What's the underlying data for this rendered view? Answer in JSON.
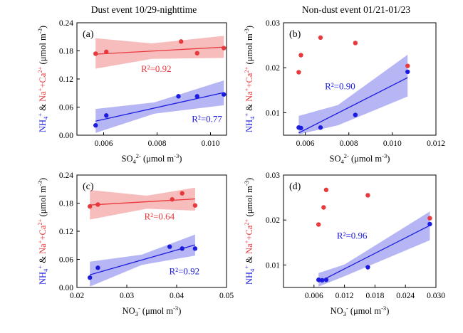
{
  "figure": {
    "column_titles": [
      "Dust event 10/29-nighttime",
      "Non-dust event 01/21-01/23"
    ]
  },
  "colors": {
    "red": "#e8393d",
    "red_band": "#f4a6a6",
    "blue": "#1c1ce0",
    "blue_band": "#9d9df0",
    "axis": "#000000"
  },
  "chart_data": [
    {
      "id": "a",
      "type": "scatter",
      "panel_label": "(a)",
      "xlabel": {
        "base": "SO",
        "sub": "4",
        "sup": "2-",
        "unit": " (μmol m",
        "unit_sup": "-3",
        "close": ")"
      },
      "ylabel": {
        "nh4": "NH",
        "nh4_sub": "4",
        "nh4_sup": "+",
        "amp": " & ",
        "na": "Na",
        "na_sup": "+",
        "plus": "+Ca",
        "ca_sup": "2+",
        "unit": " (μmol m",
        "unit_sup": "-3",
        "close": ")"
      },
      "xlim": [
        0.005,
        0.0106
      ],
      "ylim": [
        0,
        0.24
      ],
      "xticks": [
        0.006,
        0.008,
        0.01
      ],
      "xtick_labels": [
        "0.006",
        "0.008",
        "0.010"
      ],
      "yticks": [
        0,
        0.06,
        0.12,
        0.18,
        0.24
      ],
      "ytick_labels": [
        "0.00",
        "0.06",
        "0.12",
        "0.18",
        "0.24"
      ],
      "series": [
        {
          "name": "Na+ + Ca2+",
          "color": "red",
          "x": [
            0.0057,
            0.0061,
            0.0089,
            0.0095,
            0.0105
          ],
          "y": [
            0.174,
            0.178,
            0.2,
            0.175,
            0.186
          ],
          "fit": {
            "x": [
              0.0057,
              0.0105
            ],
            "y": [
              0.173,
              0.188
            ]
          },
          "band_upper": {
            "x": [
              0.0057,
              0.0078,
              0.0105
            ],
            "y": [
              0.207,
              0.196,
              0.212
            ]
          },
          "band_lower": {
            "x": [
              0.0057,
              0.0078,
              0.0105
            ],
            "y": [
              0.142,
              0.163,
              0.165
            ]
          },
          "r2": "R²=0.92",
          "r2_pos": [
            0.0074,
            0.135
          ]
        },
        {
          "name": "NH4+",
          "color": "blue",
          "x": [
            0.0057,
            0.0061,
            0.0088,
            0.0095,
            0.0105
          ],
          "y": [
            0.021,
            0.042,
            0.083,
            0.083,
            0.087
          ],
          "fit": {
            "x": [
              0.0057,
              0.0105
            ],
            "y": [
              0.03,
              0.091
            ]
          },
          "band_upper": {
            "x": [
              0.0057,
              0.0079,
              0.0105
            ],
            "y": [
              0.056,
              0.07,
              0.117
            ]
          },
          "band_lower": {
            "x": [
              0.0057,
              0.0079,
              0.0105
            ],
            "y": [
              0.005,
              0.046,
              0.064
            ]
          },
          "r2": "R²=0.77",
          "r2_pos": [
            0.0093,
            0.028
          ]
        }
      ]
    },
    {
      "id": "b",
      "type": "scatter",
      "panel_label": "(b)",
      "xlabel": {
        "base": "SO",
        "sub": "4",
        "sup": "2-",
        "unit": " (μmol m",
        "unit_sup": "-3",
        "close": ")"
      },
      "ylabel": {
        "nh4": "NH",
        "nh4_sub": "4",
        "nh4_sup": "+",
        "amp": " & ",
        "na": "Na",
        "na_sup": "+",
        "plus": "+Ca",
        "ca_sup": "2+",
        "unit": " (μmol m",
        "unit_sup": "-3",
        "close": ")"
      },
      "xlim": [
        0.005,
        0.012
      ],
      "ylim": [
        0.005,
        0.03
      ],
      "xticks": [
        0.006,
        0.008,
        0.01,
        0.012
      ],
      "xtick_labels": [
        "0.006",
        "0.008",
        "0.010",
        "0.012"
      ],
      "yticks": [
        0.01,
        0.02,
        0.03
      ],
      "ytick_labels": [
        "0.01",
        "0.02",
        "0.03"
      ],
      "series": [
        {
          "name": "Na+ + Ca2+",
          "color": "red",
          "x": [
            0.0057,
            0.0058,
            0.0067,
            0.0083,
            0.0107
          ],
          "y": [
            0.019,
            0.0228,
            0.0267,
            0.0255,
            0.0204
          ],
          "fit": null,
          "band_upper": null,
          "band_lower": null,
          "r2": null,
          "r2_pos": null
        },
        {
          "name": "NH4+",
          "color": "blue",
          "x": [
            0.0057,
            0.0058,
            0.0067,
            0.0083,
            0.0107
          ],
          "y": [
            0.0067,
            0.0066,
            0.0067,
            0.0095,
            0.0191
          ],
          "fit": {
            "x": [
              0.0057,
              0.0107
            ],
            "y": [
              0.0055,
              0.0178
            ]
          },
          "band_upper": {
            "x": [
              0.0057,
              0.0075,
              0.0107
            ],
            "y": [
              0.0093,
              0.0117,
              0.0229
            ]
          },
          "band_lower": {
            "x": [
              0.0057,
              0.0075,
              0.0107
            ],
            "y": [
              0.0052,
              0.0072,
              0.0136
            ]
          },
          "r2": "R²=0.90",
          "r2_pos": [
            0.0069,
            0.0152
          ]
        }
      ]
    },
    {
      "id": "c",
      "type": "scatter",
      "panel_label": "(c)",
      "xlabel": {
        "base": "NO",
        "sub": "3",
        "sup": "-",
        "unit": " (μmol m",
        "unit_sup": "-3",
        "close": ")"
      },
      "ylabel": {
        "nh4": "NH",
        "nh4_sub": "4",
        "nh4_sup": "+",
        "amp": " & ",
        "na": "Na",
        "na_sup": "+",
        "plus": "+Ca",
        "ca_sup": "2+",
        "unit": " (μmol m",
        "unit_sup": "-3",
        "close": ")"
      },
      "xlim": [
        0.02,
        0.05
      ],
      "ylim": [
        0,
        0.24
      ],
      "xticks": [
        0.02,
        0.03,
        0.04,
        0.05
      ],
      "xtick_labels": [
        "0.02",
        "0.03",
        "0.04",
        "0.05"
      ],
      "yticks": [
        0,
        0.06,
        0.12,
        0.18,
        0.24
      ],
      "ytick_labels": [
        "0.00",
        "0.06",
        "0.12",
        "0.18",
        "0.24"
      ],
      "series": [
        {
          "name": "Na+ + Ca2+",
          "color": "red",
          "x": [
            0.0226,
            0.0242,
            0.0391,
            0.0411,
            0.0437
          ],
          "y": [
            0.173,
            0.177,
            0.188,
            0.201,
            0.175
          ],
          "fit": {
            "x": [
              0.0226,
              0.0437
            ],
            "y": [
              0.176,
              0.189
            ]
          },
          "band_upper": {
            "x": [
              0.0226,
              0.034,
              0.0437
            ],
            "y": [
              0.208,
              0.196,
              0.213
            ]
          },
          "band_lower": {
            "x": [
              0.0226,
              0.034,
              0.0437
            ],
            "y": [
              0.145,
              0.168,
              0.164
            ]
          },
          "r2": "R²=0.64",
          "r2_pos": [
            0.0335,
            0.145
          ]
        },
        {
          "name": "NH4+",
          "color": "blue",
          "x": [
            0.0226,
            0.0242,
            0.0386,
            0.0411,
            0.0437
          ],
          "y": [
            0.021,
            0.042,
            0.087,
            0.083,
            0.083
          ],
          "fit": {
            "x": [
              0.0226,
              0.0437
            ],
            "y": [
              0.027,
              0.091
            ]
          },
          "band_upper": {
            "x": [
              0.0226,
              0.033,
              0.0437
            ],
            "y": [
              0.055,
              0.07,
              0.113
            ]
          },
          "band_lower": {
            "x": [
              0.0226,
              0.033,
              0.0437
            ],
            "y": [
              0.002,
              0.048,
              0.068
            ]
          },
          "r2": "R²=0.92",
          "r2_pos": [
            0.0385,
            0.028
          ]
        }
      ]
    },
    {
      "id": "d",
      "type": "scatter",
      "panel_label": "(d)",
      "xlabel": {
        "base": "NO",
        "sub": "3",
        "sup": "-",
        "unit": " (μmol m",
        "unit_sup": "-3",
        "close": ")"
      },
      "ylabel": {
        "nh4": "NH",
        "nh4_sub": "4",
        "nh4_sup": "+",
        "amp": " & ",
        "na": "Na",
        "na_sup": "+",
        "plus": "+Ca",
        "ca_sup": "2+",
        "unit": " (μmol m",
        "unit_sup": "-3",
        "close": ")"
      },
      "xlim": [
        0,
        0.03
      ],
      "ylim": [
        0.005,
        0.03
      ],
      "xticks": [
        0.006,
        0.012,
        0.018,
        0.024,
        0.03
      ],
      "xtick_labels": [
        "0.006",
        "0.012",
        "0.018",
        "0.024",
        "0.030"
      ],
      "yticks": [
        0.01,
        0.02,
        0.03
      ],
      "ytick_labels": [
        "0.01",
        "0.02",
        "0.03"
      ],
      "series": [
        {
          "name": "Na+ + Ca2+",
          "color": "red",
          "x": [
            0.0069,
            0.0079,
            0.0084,
            0.0166,
            0.0288
          ],
          "y": [
            0.019,
            0.0228,
            0.0267,
            0.0255,
            0.0204
          ],
          "fit": null,
          "band_upper": null,
          "band_lower": null,
          "r2": null,
          "r2_pos": null
        },
        {
          "name": "NH4+",
          "color": "blue",
          "x": [
            0.0069,
            0.0076,
            0.0084,
            0.0166,
            0.0288
          ],
          "y": [
            0.0067,
            0.0066,
            0.0067,
            0.0095,
            0.0191
          ],
          "fit": {
            "x": [
              0.0069,
              0.0288
            ],
            "y": [
              0.0062,
              0.0188
            ]
          },
          "band_upper": {
            "x": [
              0.0069,
              0.012,
              0.0288
            ],
            "y": [
              0.0082,
              0.0101,
              0.0219
            ]
          },
          "band_lower": {
            "x": [
              0.0069,
              0.012,
              0.0288
            ],
            "y": [
              0.0052,
              0.0075,
              0.0155
            ]
          },
          "r2": "R²=0.96",
          "r2_pos": [
            0.0105,
            0.0158
          ]
        }
      ]
    }
  ]
}
